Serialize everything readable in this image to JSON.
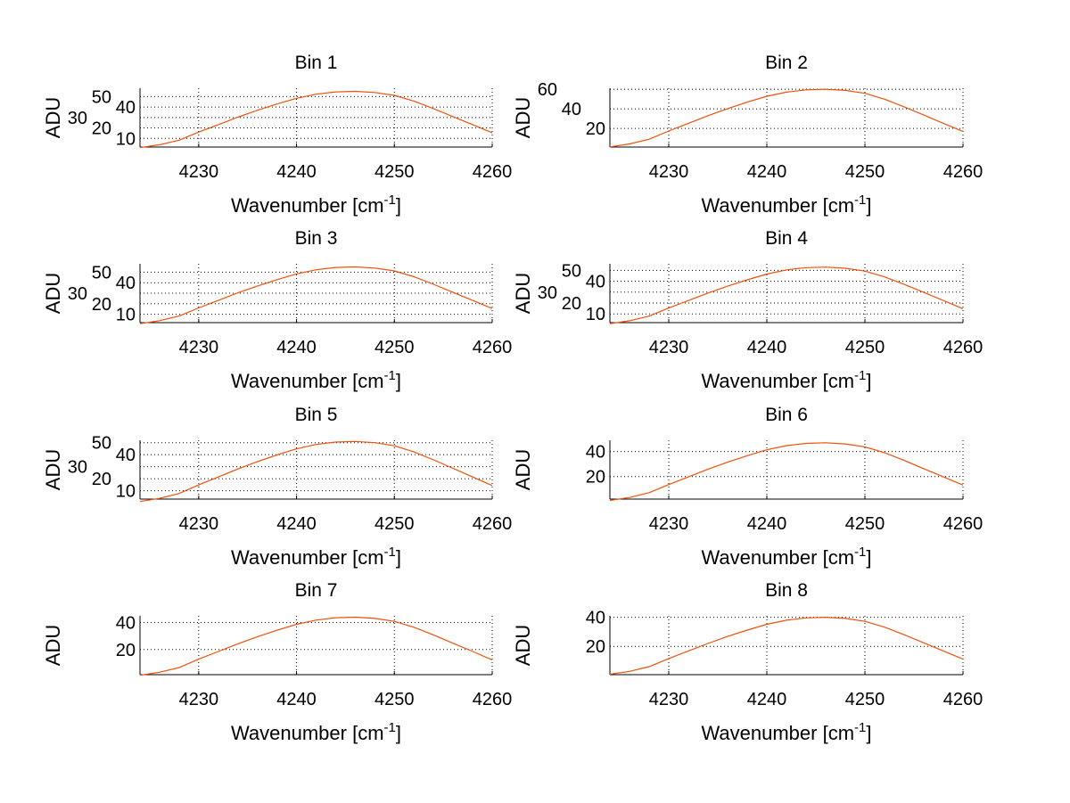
{
  "chart_data": {
    "type": "line",
    "layout": "4x2 grid",
    "x": [
      4224,
      4226,
      4228,
      4230,
      4232,
      4234,
      4236,
      4238,
      4240,
      4242,
      4244,
      4246,
      4248,
      4250,
      4252,
      4254,
      4256,
      4258,
      4260
    ],
    "xlim": [
      4224,
      4260
    ],
    "xticks": [
      4230,
      4240,
      4250,
      4260
    ],
    "xlabel": "Wavenumber [cm",
    "xlabel_sup": "-1",
    "xlabel_end": "]",
    "ylabel": "ADU",
    "grid": true,
    "line_color": "#f0500a",
    "subplots": [
      {
        "title": "Bin 1",
        "ylim": [
          1.7,
          58
        ],
        "yticks": [
          10,
          20,
          30,
          40,
          50
        ],
        "values": [
          1.1,
          3.9,
          8.3,
          16,
          23.1,
          30.3,
          36.9,
          42.9,
          48.4,
          52.3,
          54.5,
          55,
          53.9,
          51.2,
          45.7,
          38.5,
          30.8,
          23.1,
          15.4
        ]
      },
      {
        "title": "Bin 2",
        "ylim": [
          1,
          61
        ],
        "yticks": [
          20,
          40,
          60
        ],
        "values": [
          1.2,
          4.2,
          9,
          17.4,
          25.2,
          33,
          40.2,
          46.8,
          52.8,
          57,
          59.4,
          60,
          58.8,
          55.8,
          49.8,
          42,
          33.6,
          25.2,
          16.8
        ]
      },
      {
        "title": "Bin 3",
        "ylim": [
          2,
          58
        ],
        "yticks": [
          10,
          20,
          30,
          40,
          50
        ],
        "values": [
          1.1,
          3.9,
          8.3,
          16,
          23.1,
          30.3,
          36.9,
          42.9,
          48.4,
          52.3,
          54.5,
          55,
          53.9,
          51.2,
          45.7,
          38.5,
          30.8,
          23.1,
          15.4
        ]
      },
      {
        "title": "Bin 4",
        "ylim": [
          2,
          56
        ],
        "yticks": [
          10,
          20,
          30,
          40,
          50
        ],
        "values": [
          1.1,
          3.7,
          8,
          15.4,
          22.3,
          29.2,
          35.5,
          41.3,
          46.6,
          50.4,
          52.5,
          53,
          51.9,
          49.3,
          44,
          37.1,
          29.7,
          22.3,
          14.8
        ]
      },
      {
        "title": "Bin 5",
        "ylim": [
          3,
          52
        ],
        "yticks": [
          10,
          20,
          30,
          40,
          50
        ],
        "values": [
          1,
          3.6,
          7.7,
          14.8,
          21.4,
          28.1,
          34.2,
          39.8,
          44.9,
          48.5,
          50.5,
          51,
          50,
          47.4,
          42.3,
          35.7,
          28.6,
          21.4,
          14.3
        ]
      },
      {
        "title": "Bin 6",
        "ylim": [
          2,
          49
        ],
        "yticks": [
          20,
          40
        ],
        "values": [
          0.9,
          3.3,
          7.1,
          13.6,
          19.7,
          25.9,
          31.5,
          36.7,
          41.4,
          44.7,
          46.5,
          47,
          46.1,
          43.7,
          39,
          32.9,
          26.3,
          19.7,
          13.2
        ]
      },
      {
        "title": "Bin 7",
        "ylim": [
          1.3,
          45
        ],
        "yticks": [
          20,
          40
        ],
        "values": [
          0.9,
          3.1,
          6.6,
          12.8,
          18.5,
          24.2,
          29.5,
          34.3,
          38.7,
          41.8,
          43.6,
          44,
          43.1,
          40.9,
          36.5,
          30.8,
          24.6,
          18.5,
          12.3
        ]
      },
      {
        "title": "Bin 8",
        "ylim": [
          0.5,
          41
        ],
        "yticks": [
          20,
          40
        ],
        "values": [
          0.8,
          2.8,
          6,
          11.6,
          16.8,
          22,
          26.8,
          31.2,
          35.2,
          38,
          39.6,
          40,
          39.2,
          37.2,
          33.2,
          28,
          22.4,
          16.8,
          11.2
        ]
      }
    ]
  }
}
